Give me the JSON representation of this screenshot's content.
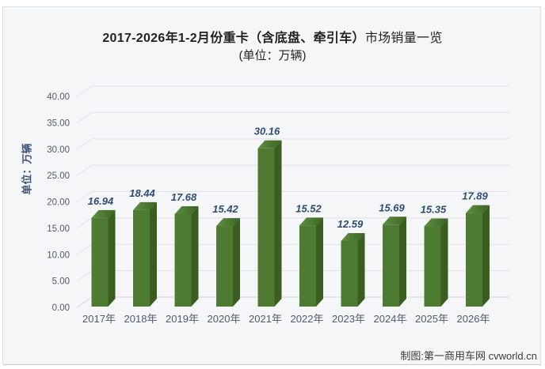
{
  "page": {
    "title_bold": "2017-2026年1-2月份重卡（含底盘、牵引车）",
    "title_regular": "市场销量一览",
    "subtitle": "(单位：万辆)",
    "y_axis_title": "单位：万辆",
    "credit": "制图:第一商用车网 cvworld.cn"
  },
  "chart_data": {
    "type": "bar",
    "style": "3d-column",
    "title": "2017-2026年1-2月份重卡（含底盘、牵引车）市场销量一览",
    "subtitle": "(单位：万辆)",
    "categories": [
      "2017年",
      "2018年",
      "2019年",
      "2020年",
      "2021年",
      "2022年",
      "2023年",
      "2024年",
      "2025年",
      "2026年"
    ],
    "values": [
      16.94,
      18.44,
      17.68,
      15.42,
      30.16,
      15.52,
      12.59,
      15.69,
      15.35,
      17.89
    ],
    "data_labels": [
      "16.94",
      "18.44",
      "17.68",
      "15.42",
      "30.16",
      "15.52",
      "12.59",
      "15.69",
      "15.35",
      "17.89"
    ],
    "xlabel": "",
    "ylabel": "单位：万辆",
    "ylim": [
      0,
      40
    ],
    "ytick_step": 5,
    "ytick_labels": [
      "0.00",
      "5.00",
      "10.00",
      "15.00",
      "20.00",
      "25.00",
      "30.00",
      "35.00",
      "40.00"
    ],
    "grid": true,
    "legend_position": "none",
    "colors": {
      "bar_front": "#4e7b31",
      "bar_top_light": "#5e9040",
      "bar_top_dark": "#3d6325",
      "bar_side": "#395e20",
      "value_label": "#2f4d74",
      "axis_text": "#515b6e",
      "gridline": "#dde0e8",
      "baseline": "#cfd3db",
      "card_background": "#f5f6f7",
      "card_border": "#dcdfe6"
    }
  }
}
